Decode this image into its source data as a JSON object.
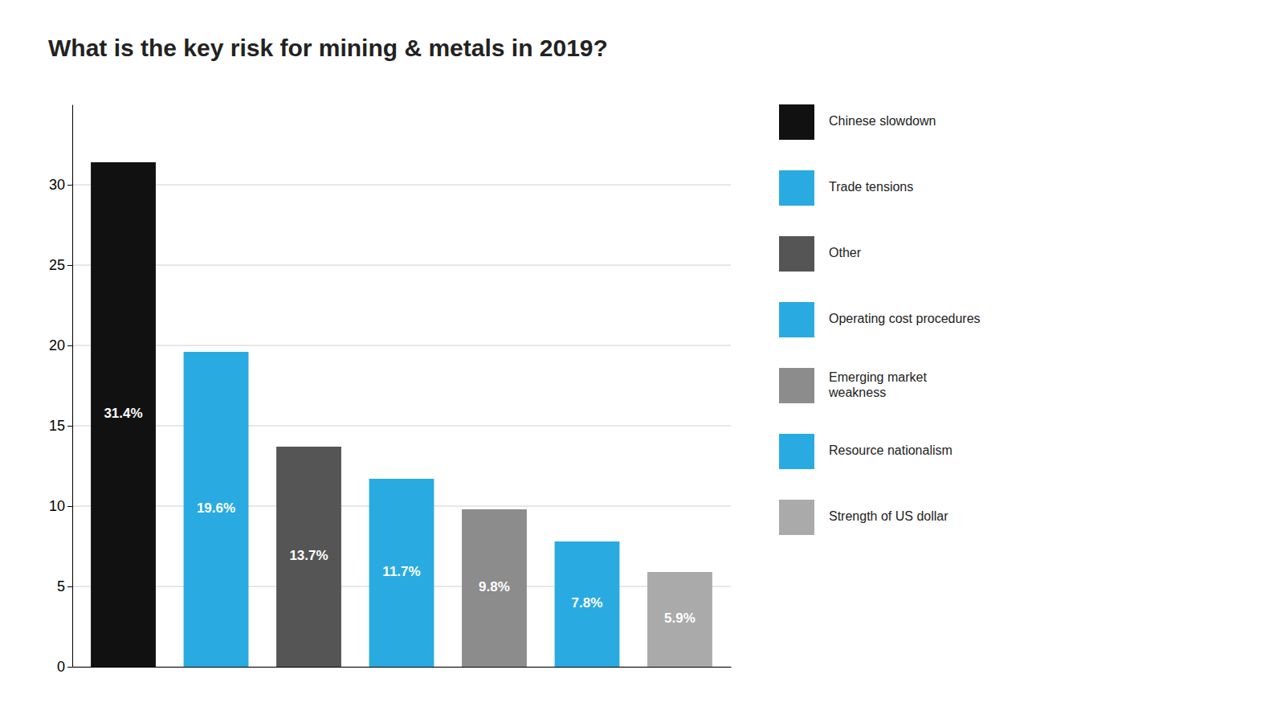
{
  "chart_data": {
    "type": "bar",
    "title": "What is the key risk for mining & metals in 2019?",
    "categories": [
      "Chinese slowdown",
      "Trade tensions",
      "Other",
      "Operating cost procedures",
      "Emerging market\nweakness",
      "Resource nationalism",
      "Strength of US dollar"
    ],
    "values": [
      31.4,
      19.6,
      13.7,
      11.7,
      9.8,
      7.8,
      5.9
    ],
    "value_labels": [
      "31.4%",
      "19.6%",
      "13.7%",
      "11.7%",
      "9.8%",
      "7.8%",
      "5.9%"
    ],
    "data_labels": true,
    "colors": [
      "#111111",
      "#29abe2",
      "#555555",
      "#29abe2",
      "#8c8c8c",
      "#29abe2",
      "#aaaaaa"
    ],
    "ylim": [
      0,
      35
    ],
    "yticks": [
      0,
      5,
      10,
      15,
      20,
      25,
      30
    ],
    "grid": true,
    "legend": "right",
    "tick_labels": "y"
  }
}
